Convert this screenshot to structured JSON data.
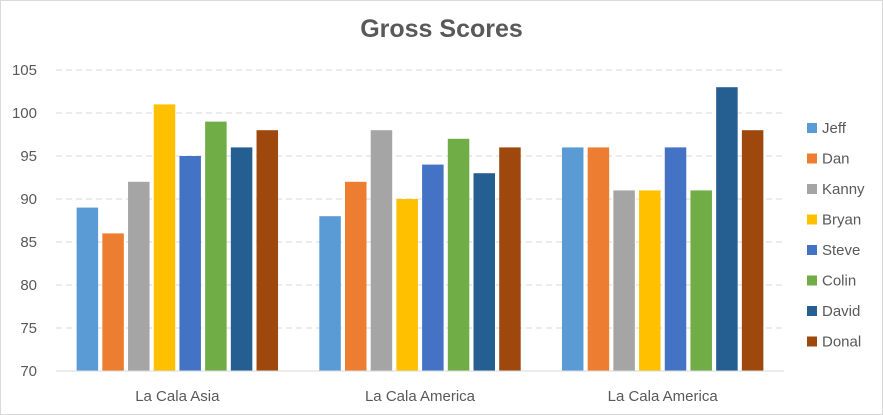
{
  "chart_data": {
    "type": "bar",
    "title": "Gross Scores",
    "xlabel": "",
    "ylabel": "",
    "ylim": [
      70,
      105
    ],
    "yticks": [
      70,
      75,
      80,
      85,
      90,
      95,
      100,
      105
    ],
    "grid": true,
    "legend_position": "right",
    "categories": [
      "La Cala Asia",
      "La Cala America",
      "La Cala America"
    ],
    "series": [
      {
        "name": "Jeff",
        "color": "#5B9BD5",
        "values": [
          89,
          88,
          96
        ]
      },
      {
        "name": "Dan",
        "color": "#ED7D31",
        "values": [
          86,
          92,
          96
        ]
      },
      {
        "name": "Kanny",
        "color": "#A5A5A5",
        "values": [
          92,
          98,
          91
        ]
      },
      {
        "name": "Bryan",
        "color": "#FFC000",
        "values": [
          101,
          90,
          91
        ]
      },
      {
        "name": "Steve",
        "color": "#4472C4",
        "values": [
          95,
          94,
          96
        ]
      },
      {
        "name": "Colin",
        "color": "#70AD47",
        "values": [
          99,
          97,
          91
        ]
      },
      {
        "name": "David",
        "color": "#255E91",
        "values": [
          96,
          93,
          103
        ]
      },
      {
        "name": "Donal",
        "color": "#9E480E",
        "values": [
          98,
          96,
          98
        ]
      }
    ]
  }
}
